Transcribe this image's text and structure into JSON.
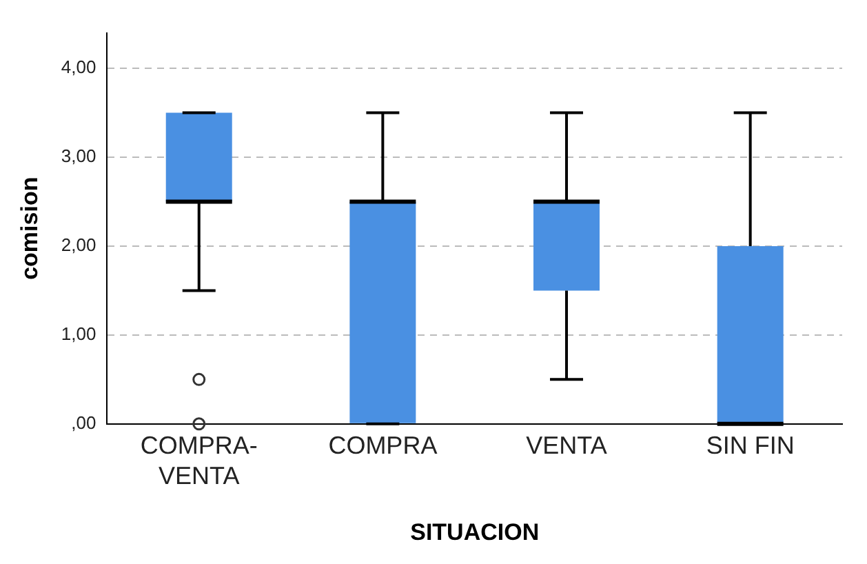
{
  "chart_data": {
    "type": "box",
    "xlabel": "SITUACION",
    "ylabel": "comision",
    "categories": [
      "COMPRA-VENTA",
      "COMPRA",
      "VENTA",
      "SIN FIN"
    ],
    "boxes": [
      {
        "low": 1.5,
        "q1": 2.5,
        "median": 2.5,
        "q3": 3.5,
        "high": 3.5,
        "outliers": [
          0.5,
          0
        ]
      },
      {
        "low": 0,
        "q1": 0,
        "median": 2.5,
        "q3": 2.5,
        "high": 3.5
      },
      {
        "low": 0.5,
        "q1": 1.5,
        "median": 2.5,
        "q3": 2.5,
        "high": 3.5
      },
      {
        "low": 0,
        "q1": 0,
        "median": 0,
        "q3": 2,
        "high": 3.5
      }
    ],
    "color": "#4a90e2",
    "ylim": [
      0,
      4.4
    ],
    "yticks": [
      {
        "value": 0,
        "label": ",00"
      },
      {
        "value": 1,
        "label": "1,00"
      },
      {
        "value": 2,
        "label": "2,00"
      },
      {
        "value": 3,
        "label": "3,00"
      },
      {
        "value": 4,
        "label": "4,00"
      }
    ],
    "grid": "y",
    "legend": false
  }
}
